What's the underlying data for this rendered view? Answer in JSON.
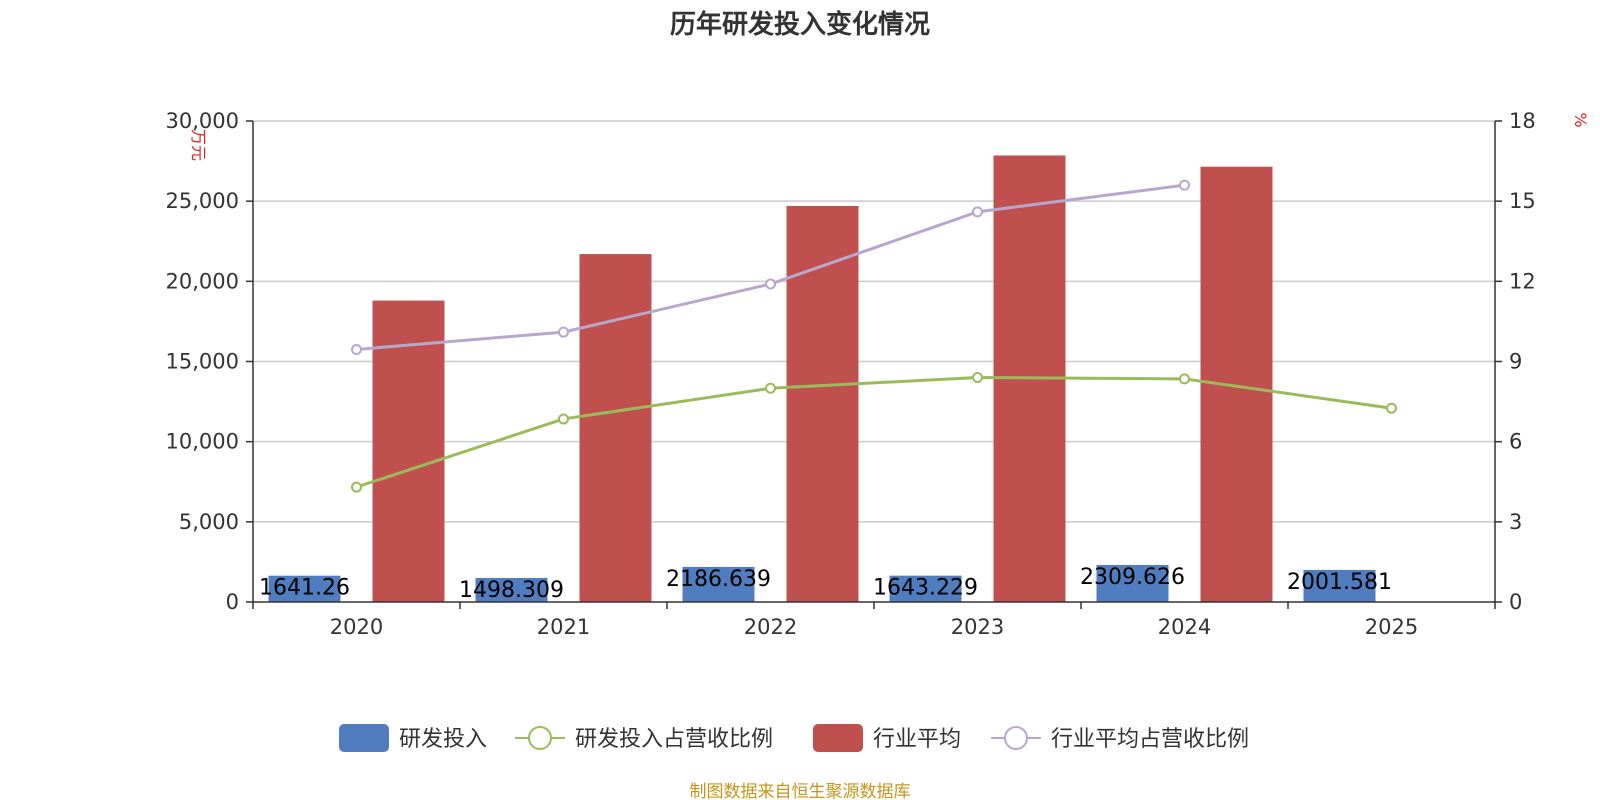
{
  "chart_data": {
    "type": "bar",
    "title": "历年研发投入变化情况",
    "categories": [
      "2020",
      "2021",
      "2022",
      "2023",
      "2024",
      "2025"
    ],
    "y_left": {
      "unit": "万元",
      "ylim": [
        0,
        30000
      ],
      "ticks": [
        "0",
        "5,000",
        "10,000",
        "15,000",
        "20,000",
        "25,000",
        "30,000"
      ]
    },
    "y_right": {
      "unit": "%",
      "ylim": [
        0,
        18
      ],
      "ticks": [
        "0",
        "3",
        "6",
        "9",
        "12",
        "15",
        "18"
      ]
    },
    "series": [
      {
        "name": "研发投入",
        "type": "bar",
        "axis": "left",
        "color": "#4f7dbf",
        "values": [
          1641.26,
          1498.309,
          2186.639,
          1643.229,
          2309.626,
          2001.581
        ],
        "labels": [
          "1641.26",
          "1498.309",
          "2186.639",
          "1643.229",
          "2309.626",
          "2001.581"
        ]
      },
      {
        "name": "研发投入占营收比例",
        "type": "line",
        "axis": "right",
        "color": "#9bbb59",
        "values": [
          4.3,
          6.85,
          8.0,
          8.4,
          8.35,
          7.25
        ]
      },
      {
        "name": "行业平均",
        "type": "bar",
        "axis": "left",
        "color": "#c0504d",
        "values": [
          18800,
          21700,
          24700,
          27850,
          27150,
          null
        ]
      },
      {
        "name": "行业平均占营收比例",
        "type": "line",
        "axis": "right",
        "color": "#b7a7cf",
        "values": [
          9.45,
          10.1,
          11.9,
          14.6,
          15.6,
          null
        ]
      }
    ],
    "grid": true,
    "legend_position": "bottom"
  },
  "footer": {
    "source": "制图数据来自恒生聚源数据库"
  }
}
